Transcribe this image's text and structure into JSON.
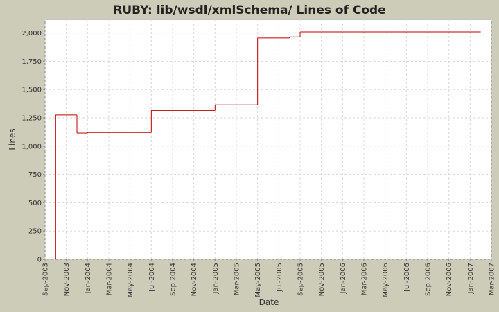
{
  "chart_data": {
    "type": "line",
    "step": true,
    "title": "RUBY: lib/wsdl/xmlSchema/ Lines of Code",
    "x_label": "Date",
    "y_label": "Lines",
    "x": [
      "2003-10",
      "2003-10",
      "2003-12",
      "2004-01",
      "2004-07",
      "2005-01",
      "2005-05",
      "2005-08",
      "2005-09",
      "2007-02"
    ],
    "values": [
      0,
      1275,
      1115,
      1120,
      1315,
      1365,
      1955,
      1965,
      2010,
      2010
    ],
    "color": "#c00000",
    "xlim": [
      "2003-09",
      "2007-03"
    ],
    "xticks": [
      {
        "value": "2003-09",
        "label": "Sep-2003"
      },
      {
        "value": "2003-11",
        "label": "Nov-2003"
      },
      {
        "value": "2004-01",
        "label": "Jan-2004"
      },
      {
        "value": "2004-03",
        "label": "Mar-2004"
      },
      {
        "value": "2004-05",
        "label": "May-2004"
      },
      {
        "value": "2004-07",
        "label": "Jul-2004"
      },
      {
        "value": "2004-09",
        "label": "Sep-2004"
      },
      {
        "value": "2004-11",
        "label": "Nov-2004"
      },
      {
        "value": "2005-01",
        "label": "Jan-2005"
      },
      {
        "value": "2005-03",
        "label": "Mar-2005"
      },
      {
        "value": "2005-05",
        "label": "May-2005"
      },
      {
        "value": "2005-07",
        "label": "Jul-2005"
      },
      {
        "value": "2005-09",
        "label": "Sep-2005"
      },
      {
        "value": "2005-11",
        "label": "Nov-2005"
      },
      {
        "value": "2006-01",
        "label": "Jan-2006"
      },
      {
        "value": "2006-03",
        "label": "Mar-2006"
      },
      {
        "value": "2006-05",
        "label": "May-2006"
      },
      {
        "value": "2006-07",
        "label": "Jul-2006"
      },
      {
        "value": "2006-09",
        "label": "Sep-2006"
      },
      {
        "value": "2006-11",
        "label": "Nov-2006"
      },
      {
        "value": "2007-01",
        "label": "Jan-2007"
      },
      {
        "value": "2007-03",
        "label": "Mar-2007"
      }
    ],
    "ylim": [
      0,
      2120
    ],
    "yticks": [
      0,
      250,
      500,
      750,
      {
        "value": 1000,
        "label": "1,000"
      },
      {
        "value": 1250,
        "label": "1,250"
      },
      {
        "value": 1500,
        "label": "1,500"
      },
      {
        "value": 1750,
        "label": "1,750"
      },
      {
        "value": 2000,
        "label": "2,000"
      }
    ],
    "grid": true
  }
}
